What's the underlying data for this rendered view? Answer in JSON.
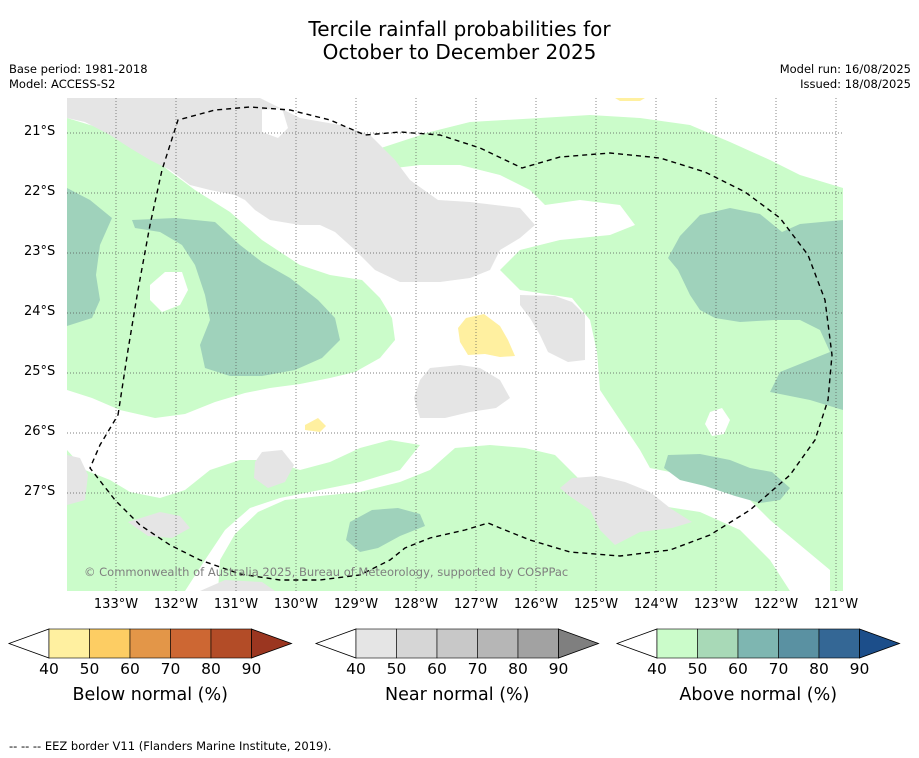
{
  "title_line1": "Tercile rainfall probabilities for",
  "title_line2": "October to December 2025",
  "base_period": "Base period: 1981-2018",
  "model": "Model: ACCESS-S2",
  "model_run": "Model run: 16/08/2025",
  "issued": "Issued: 18/08/2025",
  "copyright": "© Commonwealth of Australia 2025, Bureau of Meteorology, supported by COSPPac",
  "footer": "--  --  -- EEZ border V11 (Flanders Marine Institute, 2019).",
  "longitudes": [
    "133°W",
    "132°W",
    "131°W",
    "130°W",
    "129°W",
    "128°W",
    "127°W",
    "126°W",
    "125°W",
    "124°W",
    "123°W",
    "122°W",
    "121°W"
  ],
  "latitudes": [
    "21°S",
    "22°S",
    "23°S",
    "24°S",
    "25°S",
    "26°S",
    "27°S"
  ],
  "colorbars": [
    {
      "title": "Below normal (%)",
      "ticks": [
        "40",
        "50",
        "60",
        "70",
        "80",
        "90"
      ],
      "colors": [
        "#ffffff",
        "#fff0a0",
        "#fdcd63",
        "#e39648",
        "#cd6733",
        "#b34c27",
        "#9b3620"
      ]
    },
    {
      "title": "Near normal (%)",
      "ticks": [
        "40",
        "50",
        "60",
        "70",
        "80",
        "90"
      ],
      "colors": [
        "#ffffff",
        "#e5e5e5",
        "#d6d6d6",
        "#c8c8c8",
        "#b6b6b6",
        "#a2a2a2",
        "#7f7f7f"
      ]
    },
    {
      "title": "Above normal (%)",
      "ticks": [
        "40",
        "50",
        "60",
        "70",
        "80",
        "90"
      ],
      "colors": [
        "#ffffff",
        "#cbfcca",
        "#a8d9b7",
        "#7eb6b1",
        "#5a91a2",
        "#346795",
        "#1c4e8a"
      ]
    }
  ]
}
